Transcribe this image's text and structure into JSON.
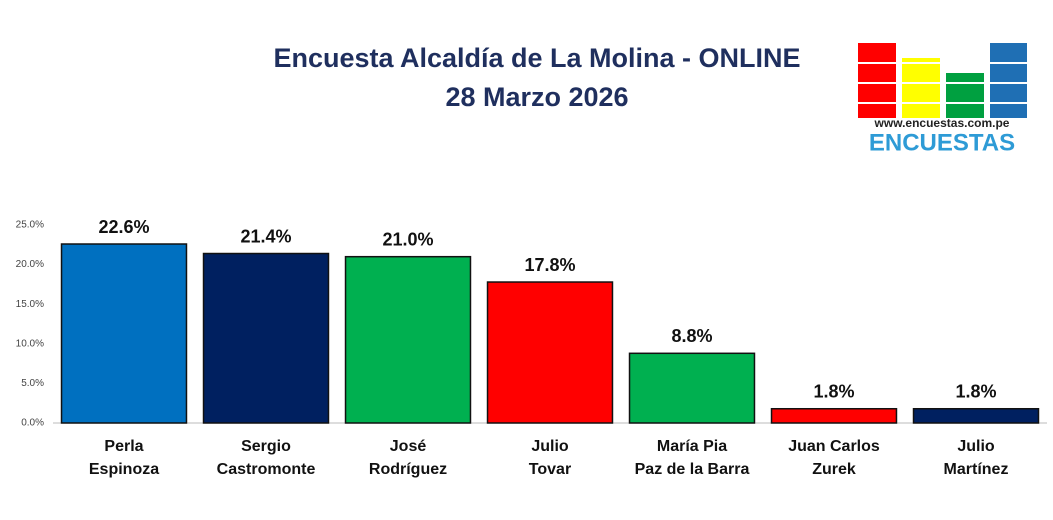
{
  "chart_data": {
    "type": "bar",
    "title": "Encuesta Alcaldía de La Molina - ONLINE",
    "subtitle": "28 Marzo 2026",
    "categories": [
      "Perla\nEspinoza",
      "Sergio\nCastromonte",
      "José\nRodríguez",
      "Julio\nTovar",
      "María Pia\nPaz de la Barra",
      "Juan Carlos\nZurek",
      "Julio\nMartínez"
    ],
    "values": [
      22.6,
      21.4,
      21.0,
      17.8,
      8.8,
      1.8,
      1.8
    ],
    "value_labels": [
      "22.6%",
      "21.4%",
      "21.0%",
      "17.8%",
      "8.8%",
      "1.8%",
      "1.8%"
    ],
    "colors": [
      "#0070c0",
      "#002060",
      "#00b050",
      "#ff0000",
      "#00b050",
      "#ff0000",
      "#002060"
    ],
    "ylim": [
      0,
      25
    ],
    "yticks": [
      {
        "value": 0,
        "label": "0.0%"
      },
      {
        "value": 5,
        "label": "5.0%"
      },
      {
        "value": 10,
        "label": "10.0%"
      },
      {
        "value": 15,
        "label": "15.0%"
      },
      {
        "value": 20,
        "label": "20.0%"
      },
      {
        "value": 25,
        "label": "25.0%"
      }
    ],
    "grid": false
  },
  "logo": {
    "url": "www.encuestas.com.pe",
    "name": "ENCUESTAS"
  }
}
